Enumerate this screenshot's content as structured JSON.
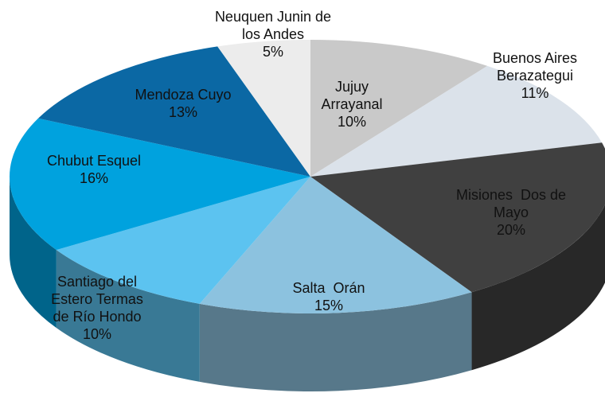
{
  "chart_data": {
    "type": "pie",
    "categories": [
      "Jujuy Arrayanal",
      "Buenos Aires Berazategui",
      "Misiones  Dos de Mayo",
      "Salta  Orán",
      "Santiago del Estero Termas de Río Hondo",
      "Chubut Esquel",
      "Mendoza Cuyo",
      "Neuquen Junin de los Andes"
    ],
    "values": [
      10,
      11,
      20,
      15,
      10,
      16,
      13,
      5
    ],
    "value_labels": [
      "10%",
      "11%",
      "20%",
      "15%",
      "10%",
      "16%",
      "13%",
      "5%"
    ],
    "colors": [
      "#c9c9c9",
      "#dbe2ea",
      "#404040",
      "#8cc2df",
      "#5cc3f0",
      "#00a2de",
      "#0b68a4",
      "#ececec"
    ]
  }
}
